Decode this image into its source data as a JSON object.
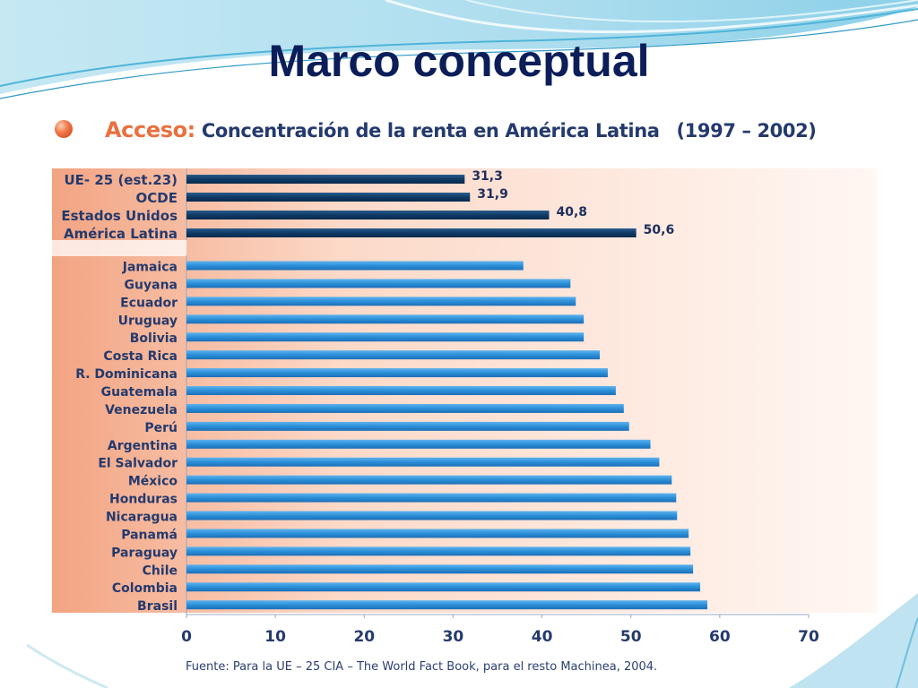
{
  "slide": {
    "title": "Marco conceptual"
  },
  "chart_heading": {
    "accent": "Acceso:",
    "main": "Concentración de la renta en América Latina",
    "period": "(1997 – 2002)"
  },
  "source_note": "Fuente: Para la UE – 25 CIA – The World Fact Book, para el resto Machinea, 2004.",
  "colors": {
    "title": "#0c1e5a",
    "accent": "#e8713f",
    "text": "#243a6e",
    "bar_dark": "#0f3a66",
    "bar_light": "#2b8fd8",
    "background_gradient_from": "#f2a482",
    "background_gradient_to": "#fff7f3"
  },
  "chart_data": {
    "type": "bar",
    "orientation": "horizontal",
    "xlim": [
      0,
      70
    ],
    "xticks": [
      0,
      10,
      20,
      30,
      40,
      50,
      60,
      70
    ],
    "grid": false,
    "groups": [
      {
        "style": "dark",
        "labeled": true,
        "categories": [
          "UE- 25 (est.23)",
          "OCDE",
          "Estados Unidos",
          "América Latina"
        ],
        "values": [
          31.3,
          31.9,
          40.8,
          50.6
        ],
        "value_labels": [
          "31,3",
          "31,9",
          "40,8",
          "50,6"
        ]
      },
      {
        "style": "light",
        "labeled": false,
        "categories": [
          "Jamaica",
          "Guyana",
          "Ecuador",
          "Uruguay",
          "Bolivia",
          "Costa Rica",
          "R. Dominicana",
          "Guatemala",
          "Venezuela",
          "Perú",
          "Argentina",
          "El Salvador",
          "México",
          "Honduras",
          "Nicaragua",
          "Panamá",
          "Paraguay",
          "Chile",
          "Colombia",
          "Brasil"
        ],
        "values": [
          37.9,
          43.2,
          43.8,
          44.7,
          44.7,
          46.5,
          47.4,
          48.3,
          49.2,
          49.8,
          52.2,
          53.2,
          54.6,
          55.1,
          55.2,
          56.5,
          56.7,
          57.0,
          57.8,
          58.6
        ]
      }
    ]
  }
}
